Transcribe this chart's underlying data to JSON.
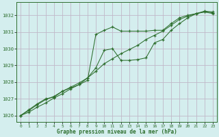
{
  "title": "Graphe pression niveau de la mer (hPa)",
  "bg_color": "#d4eeee",
  "plot_bg_color": "#d4eeee",
  "grid_color": "#c0b8c8",
  "line_color": "#2d6e2d",
  "xlim": [
    -0.5,
    23.5
  ],
  "ylim": [
    1025.6,
    1032.8
  ],
  "yticks": [
    1026,
    1027,
    1028,
    1029,
    1030,
    1031,
    1032
  ],
  "xticks": [
    0,
    1,
    2,
    3,
    4,
    5,
    6,
    7,
    8,
    9,
    10,
    11,
    12,
    13,
    14,
    15,
    16,
    17,
    18,
    19,
    20,
    21,
    22,
    23
  ],
  "series1_x": [
    0,
    1,
    2,
    3,
    4,
    5,
    6,
    7,
    8,
    9,
    10,
    11,
    12,
    13,
    14,
    15,
    16,
    17,
    18,
    19,
    20,
    21,
    22,
    23
  ],
  "series1_y": [
    1026.0,
    1026.35,
    1026.7,
    1027.0,
    1027.1,
    1027.45,
    1027.65,
    1027.85,
    1028.1,
    1030.85,
    1031.1,
    1031.3,
    1031.05,
    1031.05,
    1031.05,
    1031.05,
    1031.1,
    1031.1,
    1031.5,
    1031.85,
    1032.0,
    1032.1,
    1032.2,
    1032.1
  ],
  "series2_x": [
    0,
    1,
    2,
    3,
    4,
    5,
    6,
    7,
    8,
    9,
    10,
    11,
    12,
    13,
    14,
    15,
    16,
    17,
    18,
    19,
    20,
    21,
    22,
    23
  ],
  "series2_y": [
    1026.0,
    1026.3,
    1026.65,
    1026.95,
    1027.15,
    1027.45,
    1027.7,
    1027.95,
    1028.25,
    1028.65,
    1029.1,
    1029.4,
    1029.7,
    1029.95,
    1030.2,
    1030.55,
    1030.8,
    1031.05,
    1031.4,
    1031.75,
    1031.95,
    1032.1,
    1032.2,
    1032.15
  ],
  "series3_x": [
    0,
    1,
    2,
    3,
    4,
    5,
    6,
    7,
    8,
    9,
    10,
    11,
    12,
    13,
    14,
    15,
    16,
    17,
    18,
    19,
    20,
    21,
    22,
    23
  ],
  "series3_y": [
    1026.0,
    1026.2,
    1026.5,
    1026.75,
    1027.05,
    1027.3,
    1027.6,
    1027.85,
    1028.25,
    1028.85,
    1029.9,
    1030.0,
    1029.3,
    1029.3,
    1029.35,
    1029.45,
    1030.35,
    1030.55,
    1031.1,
    1031.5,
    1031.85,
    1032.1,
    1032.25,
    1032.2
  ]
}
